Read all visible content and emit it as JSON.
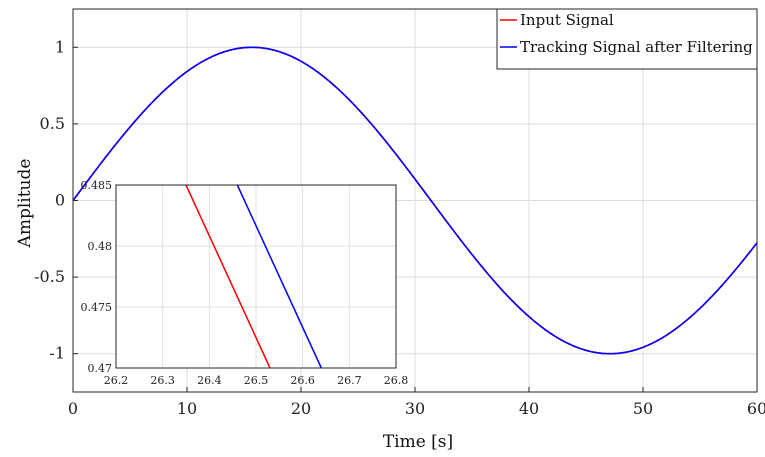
{
  "chart_data": {
    "type": "line",
    "title": "",
    "xlabel": "Time [s]",
    "ylabel": "Amplitude",
    "xlim": [
      0,
      60
    ],
    "ylim": [
      -1.25,
      1.25
    ],
    "xticks": [
      "0",
      "10",
      "20",
      "30",
      "40",
      "50",
      "60"
    ],
    "yticks": [
      "1",
      "0.5",
      "0",
      "-0.5",
      "-1"
    ],
    "grid": true,
    "legend_position": "top-right",
    "series": [
      {
        "name": "Input Signal",
        "color": "#ff0000",
        "function": "sin",
        "period": 62.8,
        "amplitude": 1,
        "x_range": [
          0,
          60
        ]
      },
      {
        "name": "Tracking Signal after Filtering",
        "color": "#0000ff",
        "function": "sin",
        "period": 62.8,
        "amplitude": 1,
        "x_range": [
          0,
          60
        ]
      }
    ],
    "inset": {
      "type": "line",
      "xlim": [
        26.2,
        26.8
      ],
      "ylim": [
        0.47,
        0.485
      ],
      "xticks": [
        "26.2",
        "26.3",
        "26.4",
        "26.5",
        "26.6",
        "26.7",
        "26.8"
      ],
      "yticks": [
        "0.485",
        "0.48",
        "0.475",
        "0.47"
      ],
      "grid": true,
      "series": [
        {
          "name": "Input Signal",
          "color": "#ff0000",
          "points": [
            [
              26.35,
              0.485
            ],
            [
              26.53,
              0.47
            ]
          ]
        },
        {
          "name": "Tracking Signal after Filtering",
          "color": "#0000ff",
          "points": [
            [
              26.46,
              0.485
            ],
            [
              26.64,
              0.47
            ]
          ]
        }
      ]
    }
  }
}
